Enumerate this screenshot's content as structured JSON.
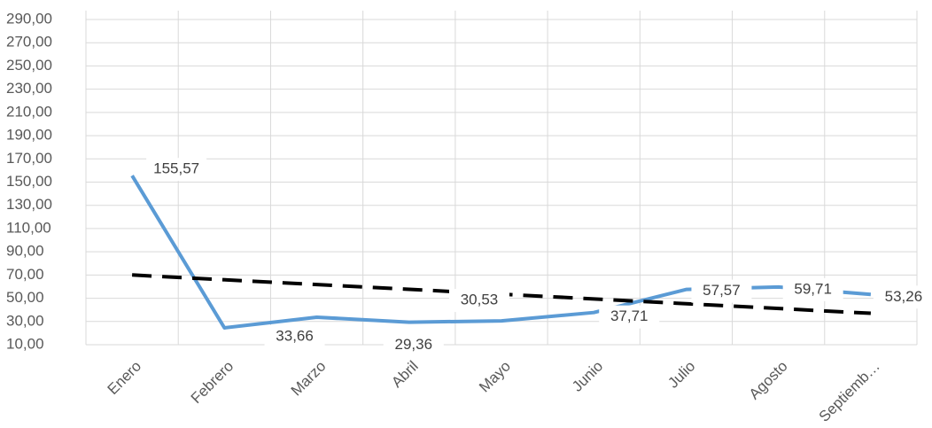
{
  "chart_data": {
    "type": "line",
    "categories": [
      "Enero",
      "Febrero",
      "Marzo",
      "Abril",
      "Mayo",
      "Junio",
      "Julio",
      "Agosto",
      "Septiemb…"
    ],
    "series": [
      {
        "color": "#5b9bd5",
        "values": [
          155.57,
          24.5,
          33.66,
          29.36,
          30.53,
          37.71,
          57.57,
          59.71,
          53.26
        ],
        "value_labels": [
          "155,57",
          null,
          "33,66",
          "29,36",
          "30,53",
          "37,71",
          "57,57",
          "59,71",
          "53,26"
        ]
      }
    ],
    "trendline": {
      "color": "#000000",
      "values": [
        70.04,
        37.04
      ]
    },
    "ylim": [
      10,
      290
    ],
    "yticks": [
      {
        "value": 10,
        "label": "10,00"
      },
      {
        "value": 30,
        "label": "30,00"
      },
      {
        "value": 50,
        "label": "50,00"
      },
      {
        "value": 70,
        "label": "70,00"
      },
      {
        "value": 90,
        "label": "90,00"
      },
      {
        "value": 110,
        "label": "110,00"
      },
      {
        "value": 130,
        "label": "130,00"
      },
      {
        "value": 150,
        "label": "150,00"
      },
      {
        "value": 170,
        "label": "170,00"
      },
      {
        "value": 190,
        "label": "190,00"
      },
      {
        "value": 210,
        "label": "210,00"
      },
      {
        "value": 230,
        "label": "230,00"
      },
      {
        "value": 250,
        "label": "250,00"
      },
      {
        "value": 270,
        "label": "270,00"
      },
      {
        "value": 290,
        "label": "290,00"
      }
    ],
    "grid": true
  }
}
